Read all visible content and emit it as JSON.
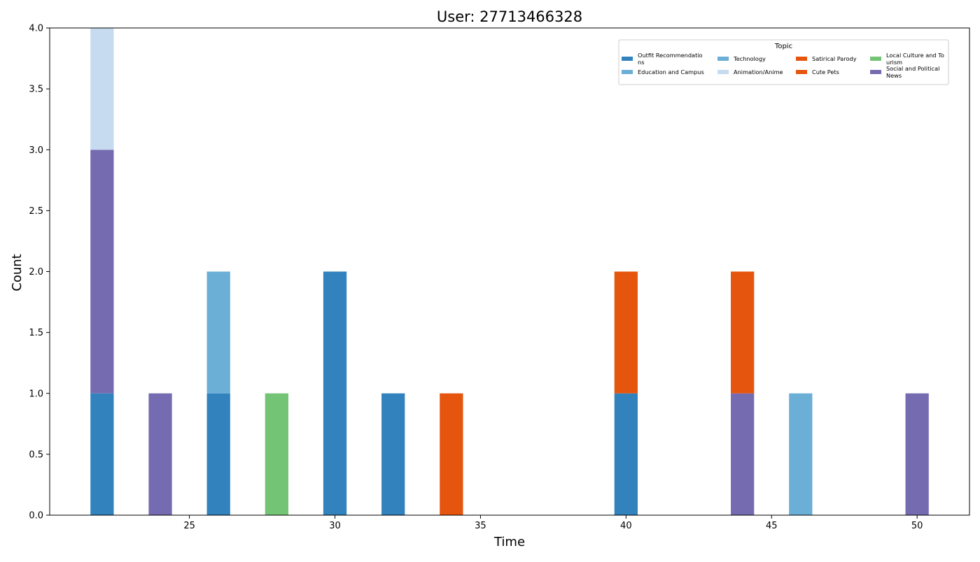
{
  "chart_data": {
    "type": "bar",
    "stacked": true,
    "title": "User: 27713466328",
    "xlabel": "Time",
    "ylabel": "Count",
    "xlim": [
      20.2,
      51.8
    ],
    "ylim": [
      0,
      4
    ],
    "x_ticks": [
      25,
      30,
      35,
      40,
      45,
      50
    ],
    "y_ticks": [
      0.0,
      0.5,
      1.0,
      1.5,
      2.0,
      2.5,
      3.0,
      3.5,
      4.0
    ],
    "bar_width": 0.8,
    "grid": false,
    "legend": {
      "title": "Topic",
      "placement": "top-right",
      "columns": [
        [
          {
            "lines": [
              "Outfit Recommendatio",
              "ns"
            ],
            "color": "#3182bd"
          },
          {
            "lines": [
              "Education and Campus"
            ],
            "color": "#6baed6"
          }
        ],
        [
          {
            "lines": [
              "Technology"
            ],
            "color": "#6baed6"
          },
          {
            "lines": [
              "Animation/Anime"
            ],
            "color": "#c6dbef"
          }
        ],
        [
          {
            "lines": [
              "Satirical Parody"
            ],
            "color": "#e6550d"
          },
          {
            "lines": [
              "Cute Pets"
            ],
            "color": "#e6550d"
          }
        ],
        [
          {
            "lines": [
              "Local Culture and To",
              "urism"
            ],
            "color": "#74c476"
          },
          {
            "lines": [
              "Social and Political",
              " News"
            ],
            "color": "#756bb1"
          }
        ]
      ]
    },
    "bars": [
      {
        "x": 22,
        "segments": [
          {
            "topic": "Outfit Recommendations",
            "value": 1,
            "color": "#3182bd"
          },
          {
            "topic": "Social and Political News",
            "value": 2,
            "color": "#756bb1"
          },
          {
            "topic": "Animation/Anime",
            "value": 1,
            "color": "#c6dbef"
          }
        ]
      },
      {
        "x": 24,
        "segments": [
          {
            "topic": "Social and Political News",
            "value": 1,
            "color": "#756bb1"
          }
        ]
      },
      {
        "x": 26,
        "segments": [
          {
            "topic": "Outfit Recommendations",
            "value": 1,
            "color": "#3182bd"
          },
          {
            "topic": "Education and Campus",
            "value": 1,
            "color": "#6baed6"
          }
        ]
      },
      {
        "x": 28,
        "segments": [
          {
            "topic": "Local Culture and Tourism",
            "value": 1,
            "color": "#74c476"
          }
        ]
      },
      {
        "x": 30,
        "segments": [
          {
            "topic": "Outfit Recommendations",
            "value": 2,
            "color": "#3182bd"
          }
        ]
      },
      {
        "x": 32,
        "segments": [
          {
            "topic": "Outfit Recommendations",
            "value": 1,
            "color": "#3182bd"
          }
        ]
      },
      {
        "x": 34,
        "segments": [
          {
            "topic": "Satirical Parody",
            "value": 1,
            "color": "#e6550d"
          }
        ]
      },
      {
        "x": 40,
        "segments": [
          {
            "topic": "Outfit Recommendations",
            "value": 1,
            "color": "#3182bd"
          },
          {
            "topic": "Satirical Parody",
            "value": 1,
            "color": "#e6550d"
          }
        ]
      },
      {
        "x": 44,
        "segments": [
          {
            "topic": "Social and Political News",
            "value": 1,
            "color": "#756bb1"
          },
          {
            "topic": "Satirical Parody",
            "value": 1,
            "color": "#e6550d"
          }
        ]
      },
      {
        "x": 46,
        "segments": [
          {
            "topic": "Education and Campus",
            "value": 1,
            "color": "#6baed6"
          }
        ]
      },
      {
        "x": 50,
        "segments": [
          {
            "topic": "Social and Political News",
            "value": 1,
            "color": "#756bb1"
          }
        ]
      }
    ]
  }
}
